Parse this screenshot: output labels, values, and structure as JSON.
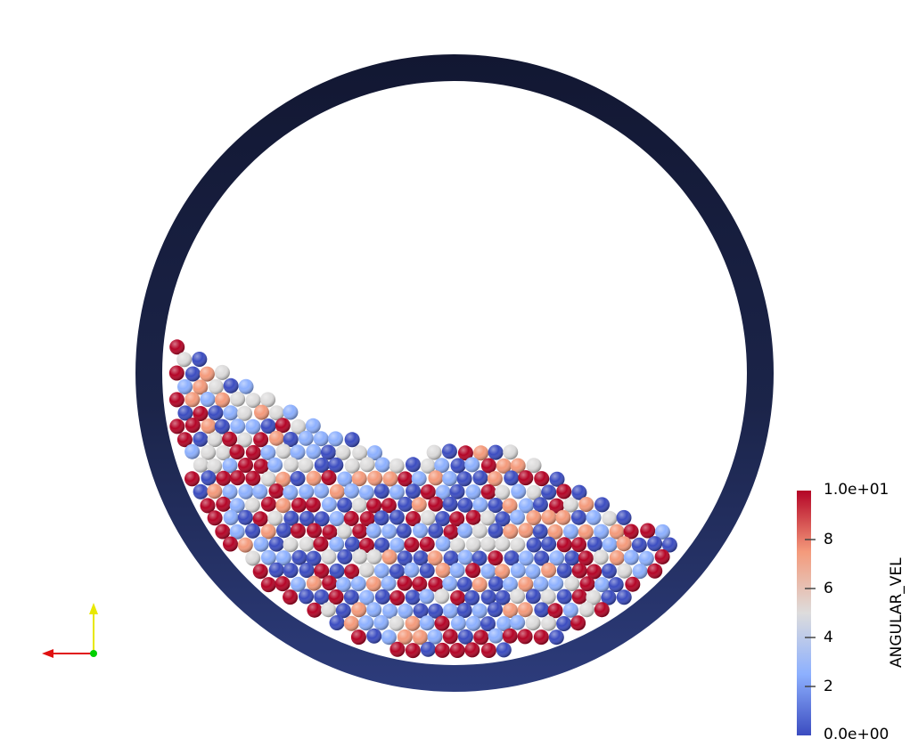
{
  "colorbar": {
    "title": "ANGULAR_VEL",
    "max_label": "1.0e+01",
    "min_label": "0.0e+00",
    "tick_labels": [
      "8",
      "6",
      "4",
      "2"
    ],
    "min": 0,
    "max": 10,
    "colors": [
      "#3b4cc0",
      "#8db0fe",
      "#dddcdc",
      "#f49a7b",
      "#b40426"
    ]
  },
  "drum": {
    "wall_color_top": "#141a35",
    "wall_color_bottom": "#2a3a78"
  },
  "orientation_axes": {
    "x_color": "#e01010",
    "y_color": "#e8e800",
    "z_color": "#00d000"
  }
}
